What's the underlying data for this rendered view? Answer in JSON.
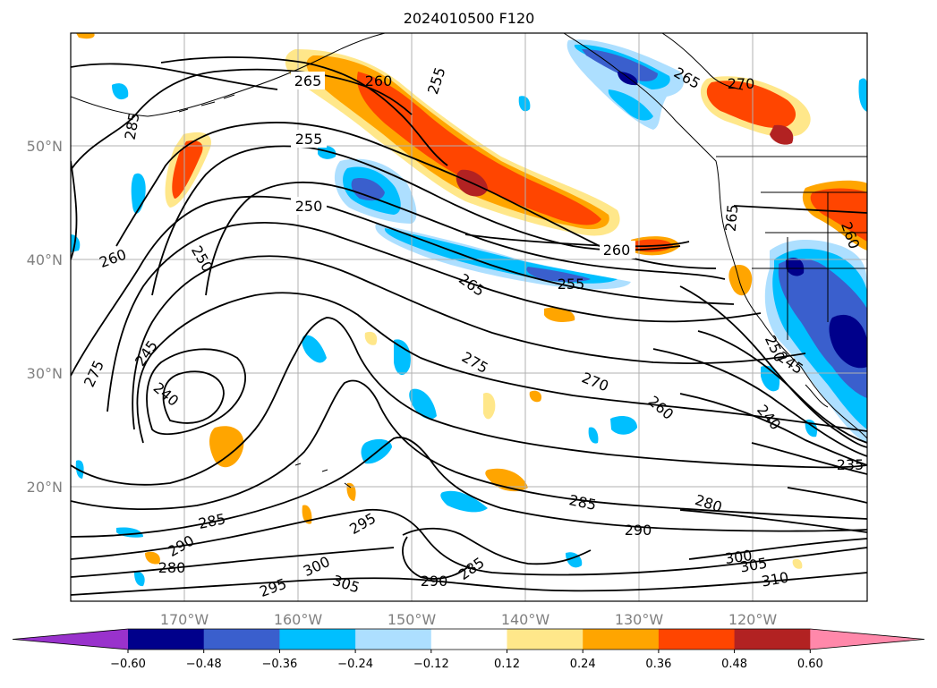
{
  "title": "2024010500 F120",
  "lat_labels": [
    "50°N",
    "40°N",
    "30°N",
    "20°N"
  ],
  "lon_labels": [
    "170°W",
    "160°W",
    "150°W",
    "140°W",
    "130°W",
    "120°W"
  ],
  "colorbar": {
    "ticks": [
      "−0.60",
      "−0.48",
      "−0.36",
      "−0.24",
      "−0.12",
      "0.12",
      "0.24",
      "0.36",
      "0.48",
      "0.60"
    ],
    "colors": [
      "#9932CC",
      "#00008B",
      "#3A5FCD",
      "#00BFFF",
      "#ADDFFF",
      "#FFFFFF",
      "#FFE78A",
      "#FFA500",
      "#FF4500",
      "#B22222",
      "#FF88AA"
    ]
  },
  "contour_labels": [
    "265",
    "260",
    "255",
    "265",
    "270",
    "285",
    "255",
    "250",
    "260",
    "250",
    "265",
    "265",
    "260",
    "255",
    "245",
    "240",
    "275",
    "275",
    "270",
    "260",
    "240",
    "245",
    "250",
    "235",
    "285",
    "280",
    "290",
    "300",
    "305",
    "310",
    "295",
    "300",
    "305",
    "290",
    "285",
    "285",
    "290",
    "280",
    "295",
    "260"
  ]
}
